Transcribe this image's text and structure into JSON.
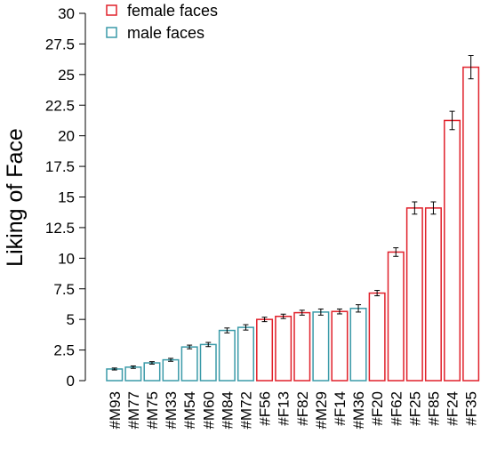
{
  "chart_data": {
    "type": "bar",
    "title": "",
    "xlabel": "",
    "ylabel": "Liking of Face",
    "ylim": [
      0,
      30
    ],
    "yticks": [
      0,
      2.5,
      5,
      7.5,
      10,
      12.5,
      15,
      17.5,
      20,
      22.5,
      25,
      27.5,
      30
    ],
    "ytick_labels": [
      "0",
      "2.5",
      "5",
      "7.5",
      "10",
      "12.5",
      "15",
      "17.5",
      "20",
      "22.5",
      "25",
      "27.5",
      "30"
    ],
    "grid": false,
    "legend_position": "top-left",
    "legend": [
      {
        "label": "female faces",
        "color": "#e0202a"
      },
      {
        "label": "male faces",
        "color": "#3a9aa8"
      }
    ],
    "categories": [
      "#M93",
      "#M77",
      "#M75",
      "#M33",
      "#M54",
      "#M60",
      "#M84",
      "#M72",
      "#F56",
      "#F13",
      "#F82",
      "#M29",
      "#F14",
      "#M36",
      "#F20",
      "#F62",
      "#F25",
      "#F85",
      "#F24",
      "#F35"
    ],
    "groups": [
      "male",
      "male",
      "male",
      "male",
      "male",
      "male",
      "male",
      "male",
      "female",
      "female",
      "female",
      "male",
      "female",
      "male",
      "female",
      "female",
      "female",
      "female",
      "female",
      "female"
    ],
    "values": [
      0.95,
      1.1,
      1.45,
      1.7,
      2.75,
      2.95,
      4.1,
      4.35,
      5.0,
      5.25,
      5.55,
      5.6,
      5.65,
      5.9,
      7.15,
      10.5,
      14.1,
      14.1,
      21.25,
      25.6
    ],
    "errors": [
      0.08,
      0.1,
      0.1,
      0.12,
      0.15,
      0.17,
      0.2,
      0.22,
      0.18,
      0.18,
      0.2,
      0.25,
      0.2,
      0.3,
      0.22,
      0.35,
      0.5,
      0.5,
      0.75,
      0.95
    ]
  }
}
